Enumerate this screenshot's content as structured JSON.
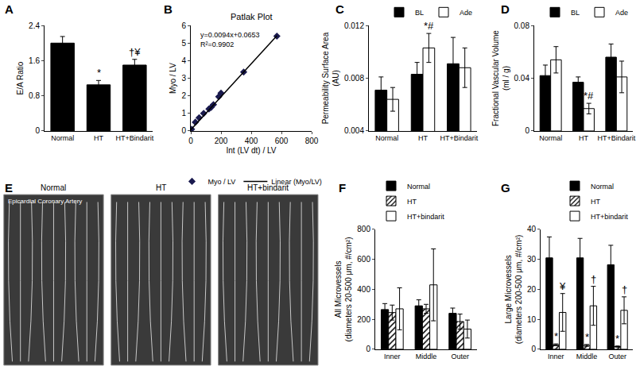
{
  "chart_data": [
    {
      "panel": "A",
      "type": "bar",
      "categories": [
        "Normal",
        "HT",
        "HT+Bindarit"
      ],
      "values": [
        2.0,
        1.05,
        1.5
      ],
      "errors": [
        0.15,
        0.1,
        0.13
      ],
      "color": "#000000",
      "ylabel": "E/A Ratio",
      "ylim": [
        0,
        2.4
      ],
      "yticks": [
        0,
        0.8,
        1.6,
        2.4
      ],
      "grid": false,
      "annotations": [
        {
          "text": "*",
          "category": "HT"
        },
        {
          "text": "†¥",
          "category": "HT+Bindarit"
        }
      ]
    },
    {
      "panel": "B",
      "type": "scatter",
      "title": "Patlak Plot",
      "xlabel": "Int (LV dt) / LV",
      "ylabel": "Myo / LV",
      "xlim": [
        0,
        800
      ],
      "xticks": [
        0,
        200,
        400,
        600,
        800
      ],
      "ylim": [
        0,
        6
      ],
      "yticks": [
        0,
        1,
        2,
        3,
        4,
        5,
        6
      ],
      "grid": false,
      "legend": "bottom",
      "annotations": [
        "y=0.0094x+0.0653",
        "R²=0.9902"
      ],
      "series": [
        {
          "name": "Myo / LV",
          "type": "scatter",
          "marker": "diamond",
          "color": "#1a1a4e",
          "x": [
            5,
            30,
            55,
            85,
            120,
            135,
            150,
            185,
            200,
            350,
            570
          ],
          "values": [
            0.1,
            0.5,
            0.75,
            1.0,
            1.25,
            1.35,
            1.5,
            1.95,
            2.15,
            3.35,
            5.4
          ]
        },
        {
          "name": "Linear (Myo/LV)",
          "type": "line",
          "line_style": "solid",
          "color": "#000000",
          "x": [
            0,
            570
          ],
          "values": [
            0.07,
            5.42
          ]
        }
      ]
    },
    {
      "panel": "C",
      "type": "bar",
      "categories": [
        "Normal",
        "HT",
        "HT+Bindarit"
      ],
      "ylabel": [
        "Permeability Surface Area",
        "(AU)"
      ],
      "ylim": [
        0.004,
        0.012
      ],
      "yticks": [
        0.004,
        0.008,
        0.012
      ],
      "grid": false,
      "legend": "top-right",
      "series": [
        {
          "name": "BL",
          "color": "#000000",
          "values": [
            0.0071,
            0.0083,
            0.0091
          ],
          "errors": [
            0.001,
            0.0009,
            0.002
          ]
        },
        {
          "name": "Ade",
          "color": "#ffffff",
          "values": [
            0.0064,
            0.0103,
            0.0088
          ],
          "errors": [
            0.0009,
            0.0011,
            0.0015
          ]
        }
      ],
      "annotations": [
        {
          "text": "*#",
          "category": "HT",
          "series": "Ade"
        }
      ]
    },
    {
      "panel": "D",
      "type": "bar",
      "categories": [
        "Normal",
        "HT",
        "HT+Bindarit"
      ],
      "ylabel": [
        "Fractional Vascular Volume",
        "(ml / g)"
      ],
      "ylim": [
        0,
        0.08
      ],
      "yticks": [
        0,
        0.04,
        0.08
      ],
      "grid": false,
      "legend": "top-right",
      "series": [
        {
          "name": "BL",
          "color": "#000000",
          "values": [
            0.042,
            0.037,
            0.056
          ],
          "errors": [
            0.008,
            0.004,
            0.01
          ]
        },
        {
          "name": "Ade",
          "color": "#ffffff",
          "values": [
            0.054,
            0.017,
            0.041
          ],
          "errors": [
            0.01,
            0.004,
            0.012
          ]
        }
      ],
      "annotations": [
        {
          "text": "*#",
          "category": "HT",
          "series": "Ade"
        }
      ]
    },
    {
      "panel": "E",
      "type": "image",
      "titles": [
        "Normal",
        "HT",
        "HT+bindarit"
      ],
      "annotations": [
        "Epicardial Coronary Artery"
      ]
    },
    {
      "panel": "F",
      "type": "bar",
      "categories": [
        "Inner",
        "Middle",
        "Outer"
      ],
      "ylabel": [
        "All Microvessels",
        "(diameters 20-500 μm, #/cm²)"
      ],
      "ylim": [
        0,
        800
      ],
      "yticks": [
        0,
        200,
        400,
        600,
        800
      ],
      "grid": false,
      "legend": "top-left",
      "series": [
        {
          "name": "Normal",
          "color": "#000000",
          "values": [
            265,
            290,
            240
          ],
          "errors": [
            40,
            40,
            35
          ]
        },
        {
          "name": "HT",
          "color": "#ffffff",
          "marker": "hatch",
          "values": [
            245,
            270,
            185
          ],
          "errors": [
            50,
            30,
            50
          ]
        },
        {
          "name": "HT+bindarit",
          "color": "#ffffff",
          "values": [
            270,
            430,
            135
          ],
          "errors": [
            140,
            240,
            60
          ]
        }
      ]
    },
    {
      "panel": "G",
      "type": "bar",
      "categories": [
        "Inner",
        "Middle",
        "Outer"
      ],
      "ylabel": [
        "Large Microvessels",
        "(diameters 200-500 μm, #/cm²)"
      ],
      "ylim": [
        0,
        40
      ],
      "yticks": [
        0,
        10,
        20,
        30,
        40
      ],
      "grid": false,
      "legend": "top-right",
      "series": [
        {
          "name": "Normal",
          "color": "#000000",
          "values": [
            30.5,
            30.5,
            28.2
          ],
          "errors": [
            7,
            6.5,
            6.5
          ]
        },
        {
          "name": "HT",
          "color": "#ffffff",
          "marker": "hatch",
          "values": [
            1.5,
            1.3,
            0.9
          ],
          "errors": [
            0.3,
            0.3,
            0.2
          ]
        },
        {
          "name": "HT+bindarit",
          "color": "#ffffff",
          "values": [
            12.3,
            14.5,
            13
          ],
          "errors": [
            6.3,
            6.5,
            4.5
          ]
        }
      ],
      "annotations": [
        {
          "text": "*",
          "category": "Inner",
          "series": "HT"
        },
        {
          "text": "*",
          "category": "Middle",
          "series": "HT"
        },
        {
          "text": "*",
          "category": "Outer",
          "series": "HT"
        },
        {
          "text": "¥",
          "category": "Inner",
          "series": "HT+bindarit"
        },
        {
          "text": "†",
          "category": "Middle",
          "series": "HT+bindarit"
        },
        {
          "text": "†",
          "category": "Outer",
          "series": "HT+bindarit"
        }
      ]
    }
  ]
}
